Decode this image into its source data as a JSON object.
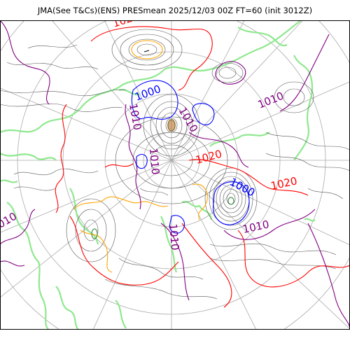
{
  "title": "JMA(See T&Cs)(ENS) PRESmean 2025/12/03 00Z FT=60 (init 3012Z)",
  "colors": {
    "coast": "#8fe88f",
    "grid": "#aaaaaa",
    "thin": "#555555",
    "iso1000": "#0000ff",
    "iso1010": "#800080",
    "iso1020": "#ff0000",
    "highlight": "#ffa500"
  },
  "labels": [
    {
      "key": "l1",
      "text": "102",
      "color": "#ff0000"
    },
    {
      "key": "l2",
      "text": "1000",
      "color": "#0000ff"
    },
    {
      "key": "l3",
      "text": "1010",
      "color": "#800080"
    },
    {
      "key": "l4",
      "text": "1010",
      "color": "#800080"
    },
    {
      "key": "l5",
      "text": "1010",
      "color": "#800080"
    },
    {
      "key": "l6",
      "text": "1010",
      "color": "#800080"
    },
    {
      "key": "l7",
      "text": "1020",
      "color": "#ff0000"
    },
    {
      "key": "l8",
      "text": "1000",
      "color": "#0000ff"
    },
    {
      "key": "l9",
      "text": "1020",
      "color": "#ff0000"
    },
    {
      "key": "l10",
      "text": "1010",
      "color": "#800080"
    },
    {
      "key": "l11",
      "text": "1010",
      "color": "#800080"
    },
    {
      "key": "l12",
      "text": "1010",
      "color": "#800080"
    }
  ]
}
